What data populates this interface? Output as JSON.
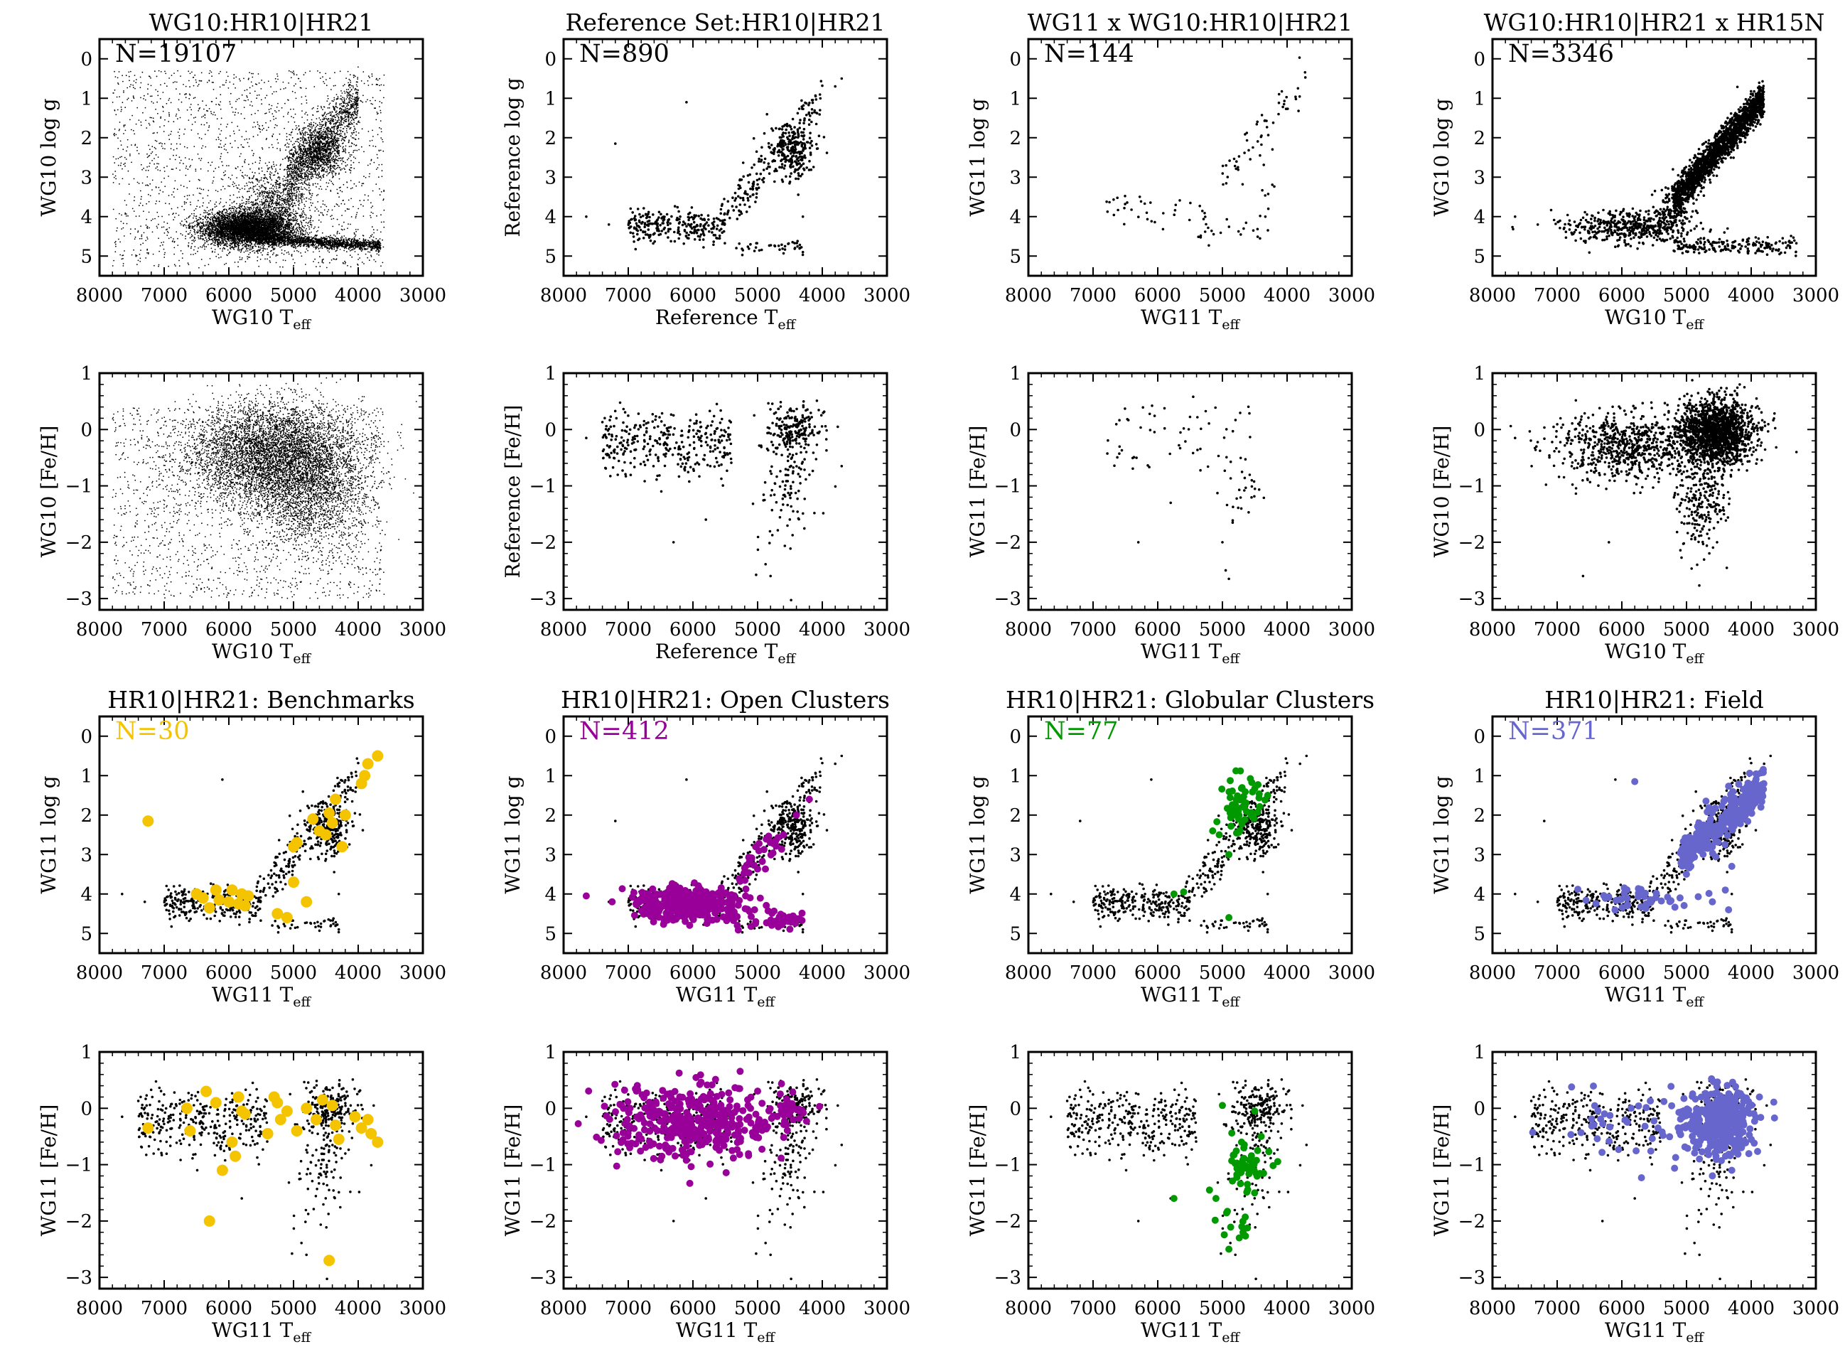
{
  "figure": {
    "xlim": [
      8000,
      3000
    ],
    "xticks": [
      "8000",
      "7000",
      "6000",
      "5000",
      "4000",
      "3000"
    ],
    "xtick_values": [
      8000,
      7000,
      6000,
      5000,
      4000,
      3000
    ],
    "logg_ticks": [
      "0",
      "1",
      "2",
      "3",
      "4",
      "5"
    ],
    "logg_tick_values": [
      0,
      1,
      2,
      3,
      4,
      5
    ],
    "feh_ticks": [
      "1",
      "0",
      "−1",
      "−2",
      "−3"
    ],
    "feh_tick_values": [
      1,
      0,
      -1,
      -2,
      -3
    ],
    "teff_sub": "eff",
    "highlight_colors": {
      "benchmarks": "#f5c400",
      "open_clusters": "#990099",
      "globular_clusters": "#009900",
      "field": "#6666cc"
    }
  },
  "chart_data": [
    {
      "id": "p1",
      "type": "scatter",
      "title": "WG10:HR10|HR21",
      "n_label": "N=19107",
      "n_color": "#000000",
      "xlabel": "WG10 T",
      "ylabel": "WG10 log g",
      "xlim": [
        8000,
        3000
      ],
      "ylim": [
        5.5,
        -0.5
      ],
      "series": [
        {
          "n": 19107,
          "dot": "tiny",
          "pattern": "dwarf clump Teff 5000-6300 logg 4.0-4.8, main sequence to 3650 K at logg 4.6-4.8, giant branch logg 1-3 near 4300-5000 K, sparse field 3600-7800 K"
        }
      ]
    },
    {
      "id": "p2",
      "type": "scatter",
      "title": "Reference Set:HR10|HR21",
      "n_label": "N=890",
      "n_color": "#000000",
      "xlabel": "Reference T",
      "ylabel": "Reference log g",
      "xlim": [
        8000,
        3000
      ],
      "ylim": [
        5.5,
        -0.5
      ],
      "series": [
        {
          "n": 890,
          "dot": "small",
          "pattern": "dwarfs Teff 5500-7000 logg 3.8-4.7, giants Teff 4000-5200 logg 1.2-3.3, red clump near 4500 K logg 2.4"
        }
      ]
    },
    {
      "id": "p3",
      "type": "scatter",
      "title": "WG11 x WG10:HR10|HR21",
      "n_label": "N=144",
      "n_color": "#000000",
      "xlabel": "WG11 T",
      "ylabel": "WG11 log g",
      "xlim": [
        8000,
        3000
      ],
      "ylim": [
        5.5,
        -0.5
      ],
      "series": [
        {
          "n": 144,
          "dot": "small",
          "pattern": "sparse dwarfs 5000-6800 K logg 3.8-4.6 and giants 3700-5000 K logg 0.5-3"
        }
      ]
    },
    {
      "id": "p4",
      "type": "scatter",
      "title": "WG10:HR10|HR21 x HR15N",
      "n_label": "N=3346",
      "n_color": "#000000",
      "xlabel": "WG10 T",
      "ylabel": "WG10 log g",
      "xlim": [
        8000,
        3000
      ],
      "ylim": [
        5.5,
        -0.5
      ],
      "series": [
        {
          "n": 3346,
          "dot": "small",
          "pattern": "dense giant branch 3800-5200 K logg 1-3.5, dwarfs 5000-7000 K logg 4-4.6, main sequence tail to 3300 K logg 4.9"
        }
      ]
    },
    {
      "id": "p5",
      "type": "scatter",
      "title": "",
      "n_label": "",
      "n_color": "#000000",
      "xlabel": "WG10 T",
      "ylabel": "WG10 [Fe/H]",
      "xlim": [
        8000,
        3000
      ],
      "ylim": [
        -3.2,
        1
      ],
      "series": [
        {
          "n": 19107,
          "dot": "tiny",
          "pattern": "dense cloud Teff 4300-6500 K [Fe/H] -1.5 to 0.3, sparse field down to -3"
        }
      ]
    },
    {
      "id": "p6",
      "type": "scatter",
      "title": "",
      "n_label": "",
      "n_color": "#000000",
      "xlabel": "Reference T",
      "ylabel": "Reference [Fe/H]",
      "xlim": [
        8000,
        3000
      ],
      "ylim": [
        -3.2,
        1
      ],
      "series": [
        {
          "n": 890,
          "dot": "small",
          "pattern": "band near [Fe/H] 0 from 3700 to 7600 K, metal-poor tail to -2.6 near 4500-5000 K"
        }
      ]
    },
    {
      "id": "p7",
      "type": "scatter",
      "title": "",
      "n_label": "",
      "n_color": "#000000",
      "xlabel": "WG11 T",
      "ylabel": "WG11 [Fe/H]",
      "xlim": [
        8000,
        3000
      ],
      "ylim": [
        -3.2,
        1
      ],
      "series": [
        {
          "n": 144,
          "dot": "small",
          "pattern": "sparse points [Fe/H] -1.5 to 0.5, few down to -2.7"
        }
      ]
    },
    {
      "id": "p8",
      "type": "scatter",
      "title": "",
      "n_label": "",
      "n_color": "#000000",
      "xlabel": "WG10 T",
      "ylabel": "WG10 [Fe/H]",
      "xlim": [
        8000,
        3000
      ],
      "ylim": [
        -3.2,
        1
      ],
      "series": [
        {
          "n": 3346,
          "dot": "small",
          "pattern": "dense blob 4000-5200 K near [Fe/H] 0, wide band 5200-7000 K, tail to -2.6"
        }
      ]
    },
    {
      "id": "p9",
      "type": "scatter",
      "title": "HR10|HR21: Benchmarks",
      "n_label": "N=30",
      "n_color": "#f5c400",
      "xlabel": "WG11 T",
      "ylabel": "WG11 log g",
      "xlim": [
        8000,
        3000
      ],
      "ylim": [
        5.5,
        -0.5
      ],
      "series": [
        {
          "role": "background",
          "color": "#000000",
          "dot": "small"
        },
        {
          "role": "highlight",
          "color": "#f5c400",
          "n": 30,
          "points": [
            [
              7250,
              2.15
            ],
            [
              6400,
              4.1
            ],
            [
              6200,
              3.9
            ],
            [
              6150,
              4.15
            ],
            [
              6000,
              4.2
            ],
            [
              5950,
              3.9
            ],
            [
              5850,
              4.25
            ],
            [
              5800,
              4.0
            ],
            [
              5750,
              4.3
            ],
            [
              5700,
              4.05
            ],
            [
              6300,
              4.35
            ],
            [
              5250,
              4.5
            ],
            [
              5100,
              4.6
            ],
            [
              5000,
              3.7
            ],
            [
              5000,
              2.8
            ],
            [
              4950,
              2.7
            ],
            [
              4700,
              2.1
            ],
            [
              4600,
              2.4
            ],
            [
              4500,
              2.5
            ],
            [
              4450,
              1.95
            ],
            [
              4400,
              2.2
            ],
            [
              4350,
              1.6
            ],
            [
              4250,
              2.8
            ],
            [
              4200,
              2.0
            ],
            [
              3950,
              1.2
            ],
            [
              3900,
              1.0
            ],
            [
              3850,
              0.7
            ],
            [
              3700,
              0.5
            ],
            [
              4800,
              4.2
            ],
            [
              6500,
              4.0
            ]
          ]
        }
      ]
    },
    {
      "id": "p10",
      "type": "scatter",
      "title": "HR10|HR21: Open Clusters",
      "n_label": "N=412",
      "n_color": "#990099",
      "xlabel": "WG11 T",
      "ylabel": "WG11 log g",
      "xlim": [
        8000,
        3000
      ],
      "ylim": [
        5.5,
        -0.5
      ],
      "series": [
        {
          "role": "background",
          "color": "#000000",
          "dot": "small"
        },
        {
          "role": "highlight",
          "color": "#990099",
          "n": 412,
          "pattern": "dense dwarfs 5200-7700 K logg 3.7-4.8, extension to 4300 K logg 4.8, giants 4700-5000 K logg 2.6-3.2"
        }
      ]
    },
    {
      "id": "p11",
      "type": "scatter",
      "title": "HR10|HR21: Globular Clusters",
      "n_label": "N=77",
      "n_color": "#009900",
      "xlabel": "WG11 T",
      "ylabel": "WG11 log g",
      "xlim": [
        8000,
        3000
      ],
      "ylim": [
        5.5,
        -0.5
      ],
      "series": [
        {
          "role": "background",
          "color": "#000000",
          "dot": "small"
        },
        {
          "role": "highlight",
          "color": "#009900",
          "n": 77,
          "pattern": "giants 4300-5000 K logg 1.2-2.4, few at logg 3-4.6"
        }
      ]
    },
    {
      "id": "p12",
      "type": "scatter",
      "title": "HR10|HR21: Field",
      "n_label": "N=371",
      "n_color": "#6666cc",
      "xlabel": "WG11 T",
      "ylabel": "WG11 log g",
      "xlim": [
        8000,
        3000
      ],
      "ylim": [
        5.5,
        -0.5
      ],
      "series": [
        {
          "role": "background",
          "color": "#000000",
          "dot": "small"
        },
        {
          "role": "highlight",
          "color": "#6666cc",
          "n": 371,
          "pattern": "dense giants 3800-5000 K logg 1.2-3.1, some dwarfs 5000-6800 K logg 3.9-4.4"
        }
      ]
    },
    {
      "id": "p13",
      "type": "scatter",
      "title": "",
      "n_label": "",
      "n_color": "#000000",
      "xlabel": "WG11 T",
      "ylabel": "WG11 [Fe/H]",
      "xlim": [
        8000,
        3000
      ],
      "ylim": [
        -3.2,
        1
      ],
      "series": [
        {
          "role": "background",
          "color": "#000000",
          "dot": "small"
        },
        {
          "role": "highlight",
          "color": "#f5c400",
          "n": 30,
          "points": [
            [
              7250,
              -0.35
            ],
            [
              6650,
              0.0
            ],
            [
              6600,
              -0.4
            ],
            [
              6350,
              0.3
            ],
            [
              6300,
              -2.0
            ],
            [
              6200,
              0.1
            ],
            [
              6100,
              -1.1
            ],
            [
              5950,
              -0.6
            ],
            [
              5900,
              -0.85
            ],
            [
              5850,
              0.2
            ],
            [
              5800,
              -0.05
            ],
            [
              5750,
              -0.1
            ],
            [
              5400,
              -0.45
            ],
            [
              5300,
              0.2
            ],
            [
              5250,
              0.1
            ],
            [
              5200,
              -0.2
            ],
            [
              5100,
              -0.05
            ],
            [
              4950,
              -0.4
            ],
            [
              4800,
              0.0
            ],
            [
              4650,
              -0.2
            ],
            [
              4550,
              0.15
            ],
            [
              4450,
              -2.7
            ],
            [
              4400,
              0.05
            ],
            [
              4350,
              -0.3
            ],
            [
              4300,
              -0.55
            ],
            [
              4050,
              -0.15
            ],
            [
              3950,
              -0.35
            ],
            [
              3850,
              -0.2
            ],
            [
              3800,
              -0.45
            ],
            [
              3700,
              -0.6
            ]
          ]
        }
      ]
    },
    {
      "id": "p14",
      "type": "scatter",
      "title": "",
      "n_label": "",
      "n_color": "#000000",
      "xlabel": "WG11 T",
      "ylabel": "WG11 [Fe/H]",
      "xlim": [
        8000,
        3000
      ],
      "ylim": [
        -3.2,
        1
      ],
      "series": [
        {
          "role": "background",
          "color": "#000000",
          "dot": "small"
        },
        {
          "role": "highlight",
          "color": "#990099",
          "n": 412,
          "pattern": "dense band 4500-7700 K [Fe/H] -1.0 to 0.5"
        }
      ]
    },
    {
      "id": "p15",
      "type": "scatter",
      "title": "",
      "n_label": "",
      "n_color": "#000000",
      "xlabel": "WG11 T",
      "ylabel": "WG11 [Fe/H]",
      "xlim": [
        8000,
        3000
      ],
      "ylim": [
        -3.2,
        1
      ],
      "series": [
        {
          "role": "background",
          "color": "#000000",
          "dot": "small"
        },
        {
          "role": "highlight",
          "color": "#009900",
          "n": 77,
          "pattern": "cluster near 4700 K [Fe/H] -0.9 to -1.4, tail to -2.5, few near 0"
        }
      ]
    },
    {
      "id": "p16",
      "type": "scatter",
      "title": "",
      "n_label": "",
      "n_color": "#000000",
      "xlabel": "WG11 T",
      "ylabel": "WG11 [Fe/H]",
      "xlim": [
        8000,
        3000
      ],
      "ylim": [
        -3.2,
        1
      ],
      "series": [
        {
          "role": "background",
          "color": "#000000",
          "dot": "small"
        },
        {
          "role": "highlight",
          "color": "#6666cc",
          "n": 371,
          "pattern": "dense blob 3900-5200 K [Fe/H] -1.0 to 0.3, scattered 5200-7200 K"
        }
      ]
    }
  ]
}
